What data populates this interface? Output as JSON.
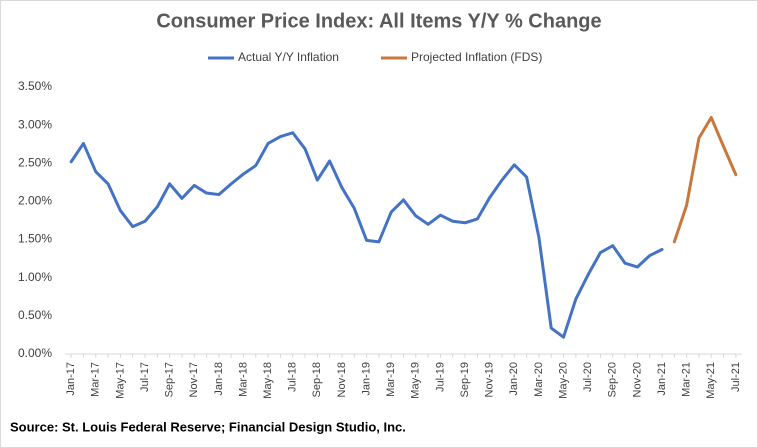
{
  "chart_data": {
    "type": "line",
    "title": "Consumer Price Index: All Items Y/Y % Change",
    "source": "Source: St. Louis Federal Reserve; Financial Design Studio, Inc.",
    "categories": [
      "Jan-17",
      null,
      "Mar-17",
      null,
      "May-17",
      null,
      "Jul-17",
      null,
      "Sep-17",
      null,
      "Nov-17",
      null,
      "Jan-18",
      null,
      "Mar-18",
      null,
      "May-18",
      null,
      "Jul-18",
      null,
      "Sep-18",
      null,
      "Nov-18",
      null,
      "Jan-19",
      null,
      "Mar-19",
      null,
      "May-19",
      null,
      "Jul-19",
      null,
      "Sep-19",
      null,
      "Nov-19",
      null,
      "Jan-20",
      null,
      "Mar-20",
      null,
      "May-20",
      null,
      "Jul-20",
      null,
      "Sep-20",
      null,
      "Nov-20",
      null,
      "Jan-21",
      null,
      "Mar-21",
      null,
      "May-21",
      null,
      "Jul-21"
    ],
    "series": [
      {
        "name": "Actual Y/Y Inflation",
        "color": "#4472c4",
        "values": [
          2.52,
          2.76,
          2.39,
          2.23,
          1.88,
          1.67,
          1.74,
          1.93,
          2.23,
          2.04,
          2.21,
          2.11,
          2.09,
          2.23,
          2.36,
          2.47,
          2.76,
          2.85,
          2.9,
          2.69,
          2.28,
          2.53,
          2.18,
          1.91,
          1.49,
          1.47,
          1.86,
          2.02,
          1.81,
          1.7,
          1.82,
          1.74,
          1.72,
          1.77,
          2.05,
          2.28,
          2.48,
          2.32,
          1.53,
          0.34,
          0.22,
          0.72,
          1.04,
          1.33,
          1.42,
          1.19,
          1.14,
          1.29,
          1.37,
          null,
          null,
          null,
          null,
          null,
          null
        ]
      },
      {
        "name": "Projected Inflation (FDS)",
        "color": "#c9773a",
        "values": [
          null,
          null,
          null,
          null,
          null,
          null,
          null,
          null,
          null,
          null,
          null,
          null,
          null,
          null,
          null,
          null,
          null,
          null,
          null,
          null,
          null,
          null,
          null,
          null,
          null,
          null,
          null,
          null,
          null,
          null,
          null,
          null,
          null,
          null,
          null,
          null,
          null,
          null,
          null,
          null,
          null,
          null,
          null,
          null,
          null,
          null,
          null,
          null,
          null,
          1.47,
          1.95,
          2.83,
          3.1,
          2.72,
          2.35
        ]
      }
    ],
    "ylim": [
      0,
      3.5
    ],
    "yticks": [
      {
        "value": 0,
        "label": "0.00%"
      },
      {
        "value": 0.5,
        "label": "0.50%"
      },
      {
        "value": 1,
        "label": "1.00%"
      },
      {
        "value": 1.5,
        "label": "1.50%"
      },
      {
        "value": 2,
        "label": "2.00%"
      },
      {
        "value": 2.5,
        "label": "2.50%"
      },
      {
        "value": 3,
        "label": "3.00%"
      },
      {
        "value": 3.5,
        "label": "3.50%"
      }
    ],
    "grid": false
  }
}
